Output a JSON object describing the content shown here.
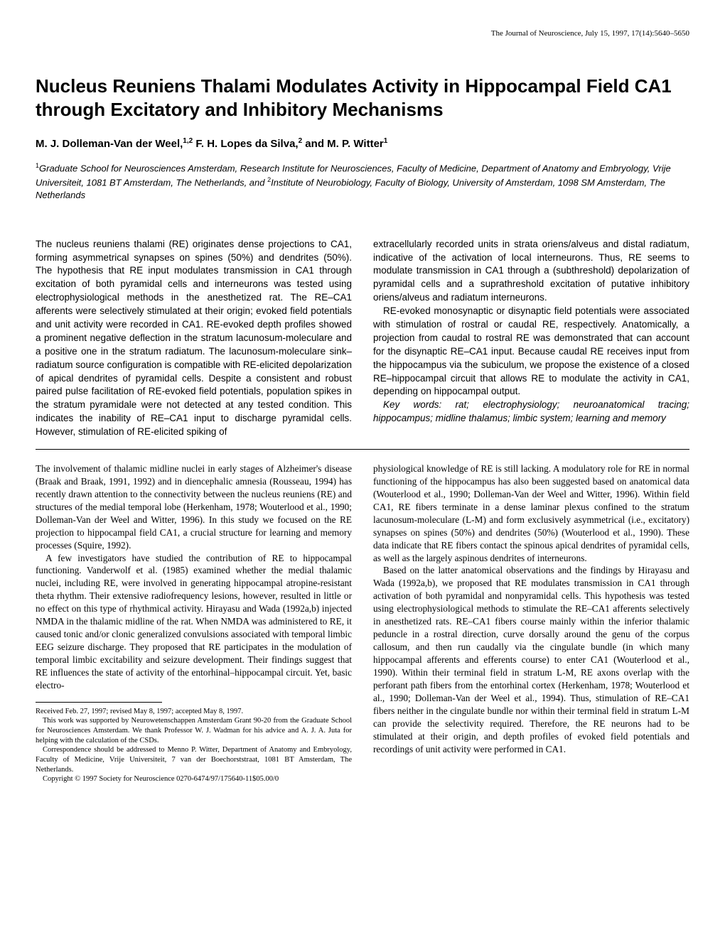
{
  "journal_header": "The Journal of Neuroscience, July 15, 1997, 17(14):5640–5650",
  "title": "Nucleus Reuniens Thalami Modulates Activity in Hippocampal Field CA1 through Excitatory and Inhibitory Mechanisms",
  "authors_html": "M. J. Dolleman-Van der Weel,<sup>1,2</sup> F. H. Lopes da Silva,<sup>2</sup> and M. P. Witter<sup>1</sup>",
  "affiliations_html": "<sup>1</sup>Graduate School for Neurosciences Amsterdam, Research Institute for Neurosciences, Faculty of Medicine, Department of Anatomy and Embryology, Vrije Universiteit, 1081 BT Amsterdam, The Netherlands, and <sup>2</sup>Institute of Neurobiology, Faculty of Biology, University of Amsterdam, 1098 SM Amsterdam, The Netherlands",
  "abstract": {
    "left": {
      "p1": "The nucleus reuniens thalami (RE) originates dense projections to CA1, forming asymmetrical synapses on spines (50%) and dendrites (50%). The hypothesis that RE input modulates transmission in CA1 through excitation of both pyramidal cells and interneurons was tested using electrophysiological methods in the anesthetized rat. The RE–CA1 afferents were selectively stimulated at their origin; evoked field potentials and unit activity were recorded in CA1. RE-evoked depth profiles showed a prominent negative deflection in the stratum lacunosum-moleculare and a positive one in the stratum radiatum. The lacunosum-moleculare sink–radiatum source configuration is compatible with RE-elicited depolarization of apical dendrites of pyramidal cells. Despite a consistent and robust paired pulse facilitation of RE-evoked field potentials, population spikes in the stratum pyramidale were not detected at any tested condition. This indicates the inability of RE–CA1 input to discharge pyramidal cells. However, stimulation of RE-elicited spiking of"
    },
    "right": {
      "p1": "extracellularly recorded units in strata oriens/alveus and distal radiatum, indicative of the activation of local interneurons. Thus, RE seems to modulate transmission in CA1 through a (subthreshold) depolarization of pyramidal cells and a suprathreshold excitation of putative inhibitory oriens/alveus and radiatum interneurons.",
      "p2": "RE-evoked monosynaptic or disynaptic field potentials were associated with stimulation of rostral or caudal RE, respectively. Anatomically, a projection from caudal to rostral RE was demonstrated that can account for the disynaptic RE–CA1 input. Because caudal RE receives input from the hippocampus via the subiculum, we propose the existence of a closed RE–hippocampal circuit that allows RE to modulate the activity in CA1, depending on hippocampal output.",
      "keywords": "Key words: rat; electrophysiology; neuroanatomical tracing; hippocampus; midline thalamus; limbic system; learning and memory"
    }
  },
  "body": {
    "left": {
      "p1": "The involvement of thalamic midline nuclei in early stages of Alzheimer's disease (Braak and Braak, 1991, 1992) and in diencephalic amnesia (Rousseau, 1994) has recently drawn attention to the connectivity between the nucleus reuniens (RE) and structures of the medial temporal lobe (Herkenham, 1978; Wouterlood et al., 1990; Dolleman-Van der Weel and Witter, 1996). In this study we focused on the RE projection to hippocampal field CA1, a crucial structure for learning and memory processes (Squire, 1992).",
      "p2": "A few investigators have studied the contribution of RE to hippocampal functioning. Vanderwolf et al. (1985) examined whether the medial thalamic nuclei, including RE, were involved in generating hippocampal atropine-resistant theta rhythm. Their extensive radiofrequency lesions, however, resulted in little or no effect on this type of rhythmical activity. Hirayasu and Wada (1992a,b) injected NMDA in the thalamic midline of the rat. When NMDA was administered to RE, it caused tonic and/or clonic generalized convulsions associated with temporal limbic EEG seizure discharge. They proposed that RE participates in the modulation of temporal limbic excitability and seizure development. Their findings suggest that RE influences the state of activity of the entorhinal–hippocampal circuit. Yet, basic electro-",
      "footnotes": {
        "f1": "Received Feb. 27, 1997; revised May 8, 1997; accepted May 8, 1997.",
        "f2": "This work was supported by Neurowetenschappen Amsterdam Grant 90-20 from the Graduate School for Neurosciences Amsterdam. We thank Professor W. J. Wadman for his advice and A. J. A. Juta for helping with the calculation of the CSDs.",
        "f3": "Correspondence should be addressed to Menno P. Witter, Department of Anatomy and Embryology, Faculty of Medicine, Vrije Universiteit, 7 van der Boechorststraat, 1081 BT Amsterdam, The Netherlands.",
        "f4": "Copyright © 1997 Society for Neuroscience   0270-6474/97/175640-11$05.00/0"
      }
    },
    "right": {
      "p1": "physiological knowledge of RE is still lacking. A modulatory role for RE in normal functioning of the hippocampus has also been suggested based on anatomical data (Wouterlood et al., 1990; Dolleman-Van der Weel and Witter, 1996). Within field CA1, RE fibers terminate in a dense laminar plexus confined to the stratum lacunosum-moleculare (L-M) and form exclusively asymmetrical (i.e., excitatory) synapses on spines (50%) and dendrites (50%) (Wouterlood et al., 1990). These data indicate that RE fibers contact the spinous apical dendrites of pyramidal cells, as well as the largely aspinous dendrites of interneurons.",
      "p2": "Based on the latter anatomical observations and the findings by Hirayasu and Wada (1992a,b), we proposed that RE modulates transmission in CA1 through activation of both pyramidal and nonpyramidal cells. This hypothesis was tested using electrophysiological methods to stimulate the RE–CA1 afferents selectively in anesthetized rats. RE–CA1 fibers course mainly within the inferior thalamic peduncle in a rostral direction, curve dorsally around the genu of the corpus callosum, and then run caudally via the cingulate bundle (in which many hippocampal afferents and efferents course) to enter CA1 (Wouterlood et al., 1990). Within their terminal field in stratum L-M, RE axons overlap with the perforant path fibers from the entorhinal cortex (Herkenham, 1978; Wouterlood et al., 1990; Dolleman-Van der Weel et al., 1994). Thus, stimulation of RE–CA1 fibers neither in the cingulate bundle nor within their terminal field in stratum L-M can provide the selectivity required. Therefore, the RE neurons had to be stimulated at their origin, and depth profiles of evoked field potentials and recordings of unit activity were performed in CA1."
    }
  }
}
